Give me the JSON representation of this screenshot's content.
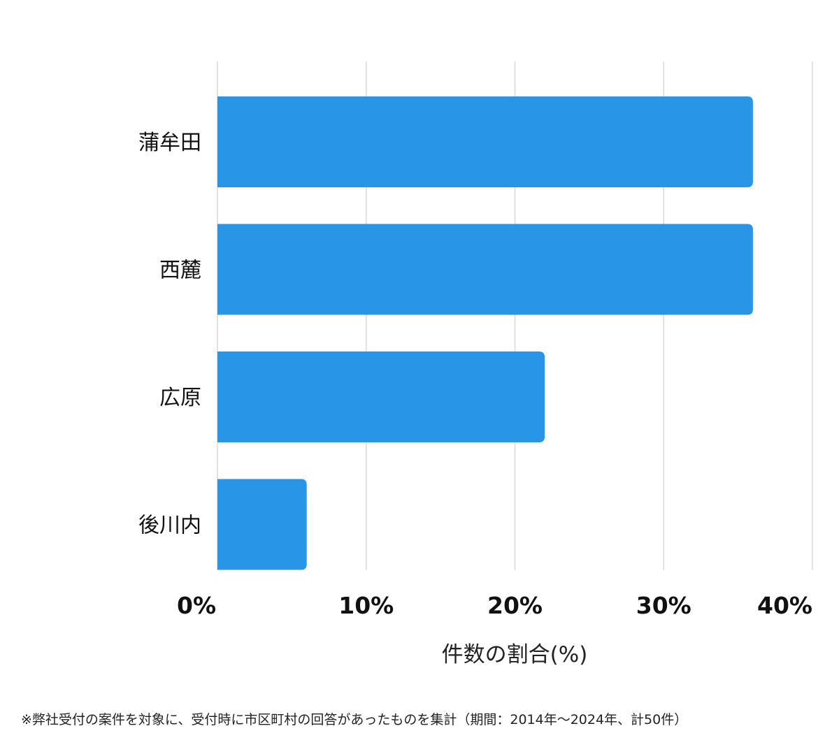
{
  "chart_data": {
    "type": "bar",
    "orientation": "horizontal",
    "categories": [
      "蒲牟田",
      "西麓",
      "広原",
      "後川内"
    ],
    "values": [
      36,
      36,
      22,
      6
    ],
    "xlabel": "件数の割合(%)",
    "ylabel": "",
    "xlim": [
      0,
      40
    ],
    "xticks": [
      "0%",
      "10%",
      "20%",
      "30%",
      "40%"
    ],
    "grid": true,
    "legend": "none",
    "bar_color": "#2895e6"
  },
  "footnote": "※弊社受付の案件を対象に、受付時に市区町村の回答があったものを集計（期間：2014年～2024年、計50件）"
}
